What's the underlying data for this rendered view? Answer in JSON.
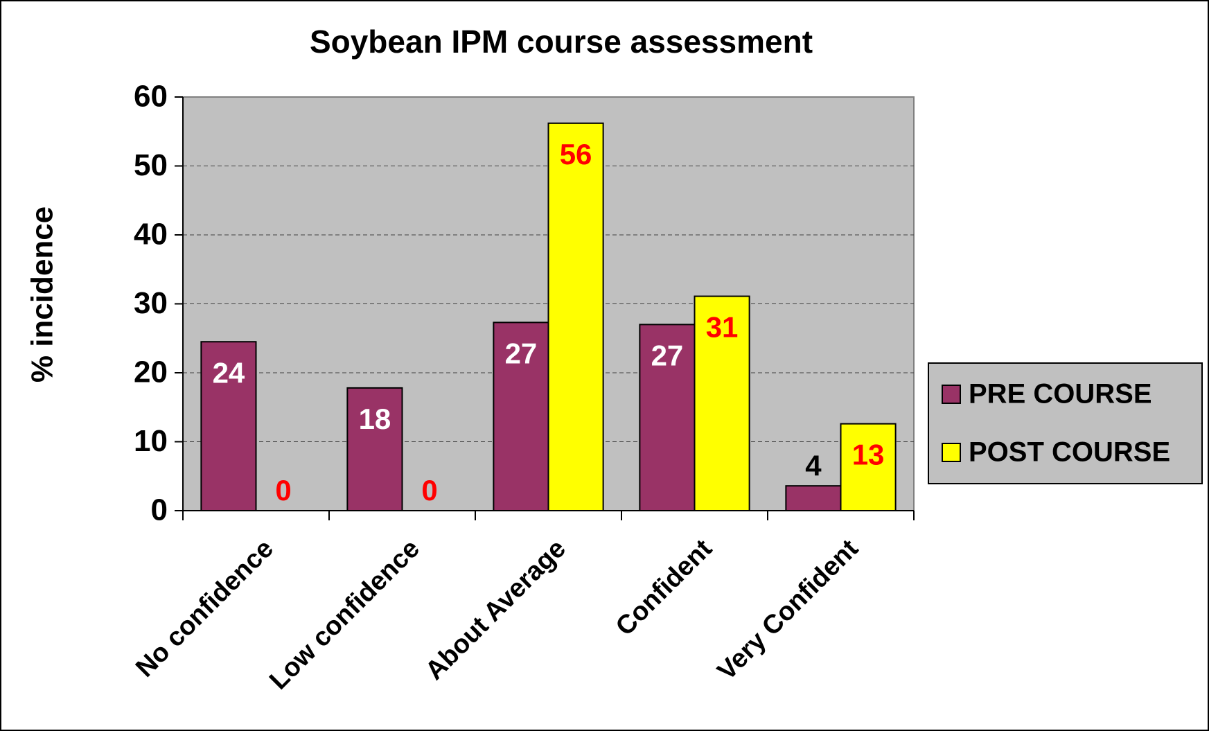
{
  "chart_data": {
    "type": "bar",
    "title": "Soybean IPM course assessment",
    "y_label": "% incidence",
    "categories": [
      "No confidence",
      "Low confidence",
      "About Average",
      "Confident",
      "Very Confident"
    ],
    "series": [
      {
        "name": "PRE COURSE",
        "color": "#993366",
        "label_color": "#ffffff",
        "values": [
          24.5,
          17.8,
          27.3,
          27,
          3.6
        ],
        "value_labels": [
          "24",
          "18",
          "27",
          "27",
          "4"
        ]
      },
      {
        "name": "POST COURSE",
        "color": "#ffff00",
        "label_color": "#ff0000",
        "values": [
          0,
          0,
          56.2,
          31.1,
          12.6
        ],
        "value_labels": [
          "0",
          "0",
          "56",
          "31",
          "13"
        ]
      }
    ],
    "ylim": [
      0,
      60
    ],
    "yticks": [
      0,
      10,
      20,
      30,
      40,
      50,
      60
    ],
    "grid": true,
    "legend": "right",
    "plot_background": "#c0c0c0"
  }
}
